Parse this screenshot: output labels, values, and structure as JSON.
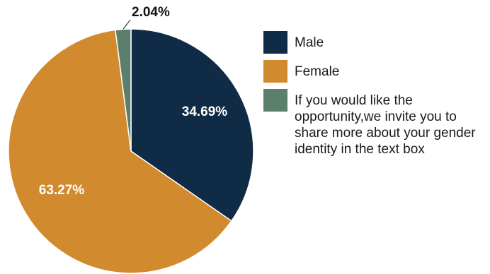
{
  "chart_data": {
    "type": "pie",
    "slices": [
      {
        "name": "Male",
        "value": 34.69,
        "label": "34.69%",
        "color": "#0f2b46"
      },
      {
        "name": "Female",
        "value": 63.27,
        "label": "63.27%",
        "color": "#d28a2e"
      },
      {
        "name": "If you would like the opportunity,we invite you to share more about your gender identity in the text box",
        "value": 2.04,
        "label": "2.04%",
        "color": "#5b7f6c"
      }
    ],
    "start_angle_deg": 0,
    "direction": "clockwise",
    "legend_position": "right"
  },
  "legend": {
    "items": [
      {
        "label": "Male",
        "color": "#0f2b46"
      },
      {
        "label": "Female",
        "color": "#d28a2e"
      },
      {
        "label": "If you would like the opportunity,we invite you to share more about your gender identity in the text box",
        "color": "#5b7f6c"
      }
    ]
  }
}
